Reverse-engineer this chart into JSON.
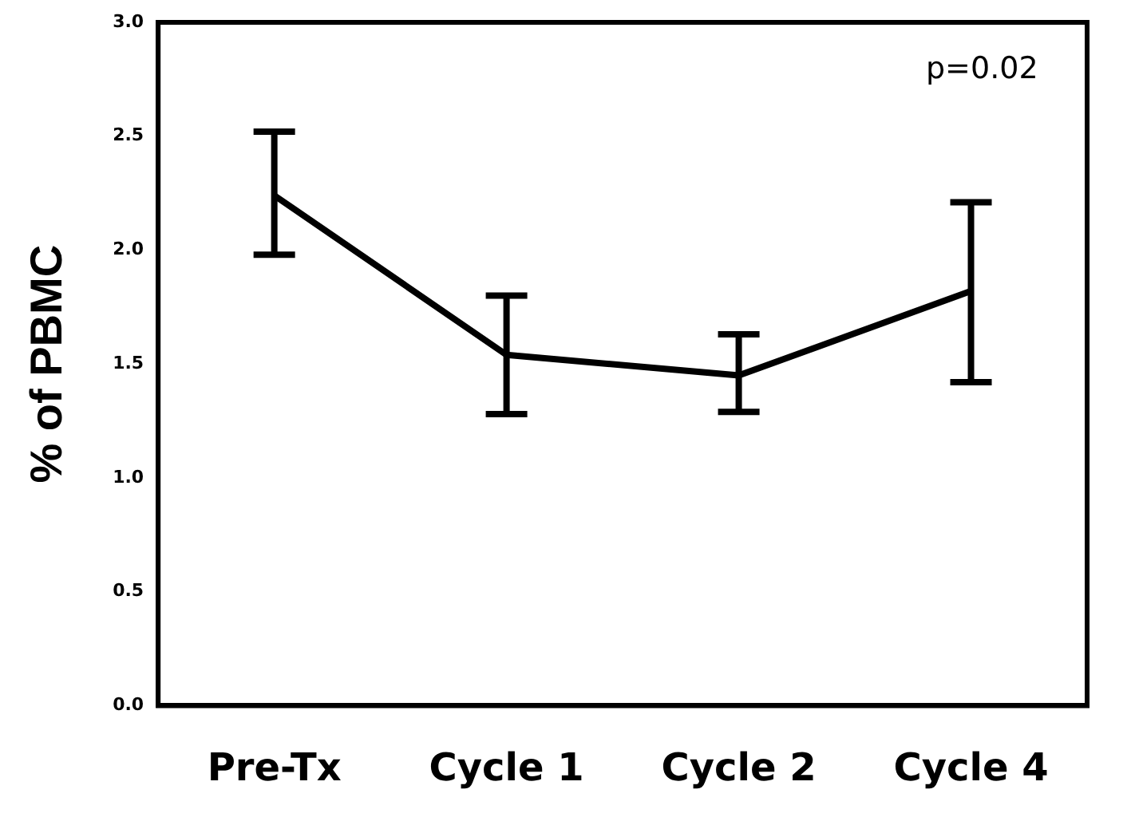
{
  "chart_data": {
    "type": "line",
    "ylabel": "% of PBMC",
    "categories": [
      "Pre-Tx",
      "Cycle 1",
      "Cycle 2",
      "Cycle 4"
    ],
    "series": [
      {
        "color": "#000000",
        "values": [
          2.24,
          1.54,
          1.45,
          1.82
        ],
        "errors": [
          [
            1.98,
            2.52
          ],
          [
            1.28,
            1.8
          ],
          [
            1.29,
            1.63
          ],
          [
            1.42,
            2.21
          ]
        ]
      }
    ],
    "ylim": [
      0,
      3
    ],
    "yticks": [
      {
        "value": 0,
        "label": "0.0"
      },
      {
        "value": 0.5,
        "label": "0.5"
      },
      {
        "value": 1,
        "label": "1.0"
      },
      {
        "value": 1.5,
        "label": "1.5"
      },
      {
        "value": 2,
        "label": "2.0"
      },
      {
        "value": 2.5,
        "label": "2.5"
      },
      {
        "value": 3,
        "label": "3.0"
      }
    ],
    "grid": false,
    "legend": false,
    "marker": "none",
    "line_style": "solid",
    "annotations": [
      "p=0.02"
    ]
  }
}
